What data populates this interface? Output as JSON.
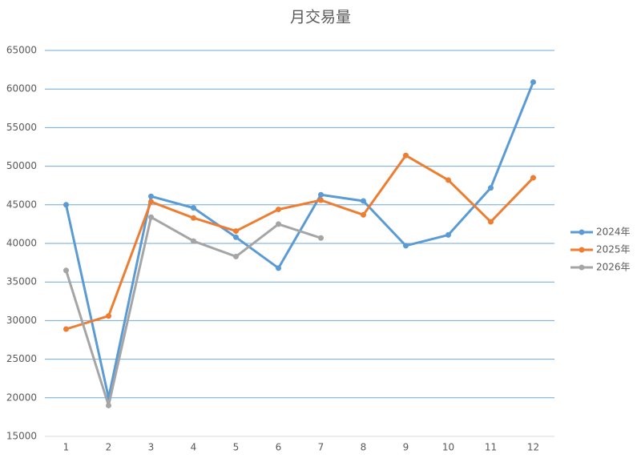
{
  "chart_data": {
    "type": "line",
    "title": "月交易量",
    "categories": [
      "1",
      "2",
      "3",
      "4",
      "5",
      "6",
      "7",
      "8",
      "9",
      "10",
      "11",
      "12"
    ],
    "series": [
      {
        "name": "2024年",
        "color": "#5b9bd5",
        "values": [
          45000,
          20000,
          46100,
          44600,
          40800,
          36800,
          46300,
          45500,
          39700,
          41100,
          47200,
          60900
        ]
      },
      {
        "name": "2025年",
        "color": "#ed7d31",
        "values": [
          28900,
          30600,
          45400,
          43300,
          41600,
          44400,
          45600,
          43700,
          51400,
          48200,
          42800,
          48500
        ]
      },
      {
        "name": "2026年",
        "color": "#a5a5a5",
        "values": [
          36500,
          19000,
          43400,
          40300,
          38300,
          42500,
          40700,
          null,
          null,
          null,
          null,
          null
        ]
      }
    ],
    "ylim": [
      15000,
      65000
    ],
    "yticks": [
      15000,
      20000,
      25000,
      30000,
      35000,
      40000,
      45000,
      50000,
      55000,
      60000,
      65000
    ],
    "grid": true,
    "legend": "right"
  }
}
